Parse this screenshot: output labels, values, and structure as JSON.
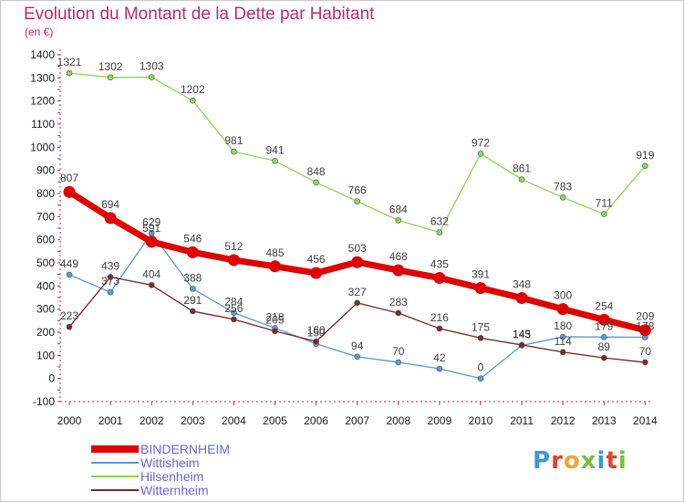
{
  "title": "Evolution du Montant de la Dette par Habitant",
  "unit_label": "(en €)",
  "logo": {
    "text": "Proxiti",
    "colors": [
      "#3b9ad9",
      "#e0452b",
      "#f2a33a",
      "#7ac143",
      "#3b9ad9",
      "#e0452b",
      "#7ac143"
    ]
  },
  "chart_data": {
    "type": "line",
    "title": "Evolution du Montant de la Dette par Habitant",
    "ylabel": "(en €)",
    "xlabel": "",
    "x": [
      "2000",
      "2001",
      "2002",
      "2003",
      "2004",
      "2005",
      "2006",
      "2007",
      "2008",
      "2009",
      "2010",
      "2011",
      "2012",
      "2013",
      "2014"
    ],
    "ylim": [
      -100,
      1400
    ],
    "yticks": [
      -100,
      0,
      100,
      200,
      300,
      400,
      500,
      600,
      700,
      800,
      900,
      1000,
      1100,
      1200,
      1300,
      1400
    ],
    "grid": false,
    "legend_position": "bottom-left",
    "series": [
      {
        "name": "BINDERNHEIM",
        "color": "#e00000",
        "values": [
          807,
          694,
          591,
          546,
          512,
          485,
          456,
          503,
          468,
          435,
          391,
          348,
          300,
          254,
          209
        ]
      },
      {
        "name": "Wittisheim",
        "color": "#5a9bd0",
        "values": [
          449,
          373,
          629,
          388,
          284,
          218,
          150,
          94,
          70,
          42,
          0,
          143,
          180,
          179,
          178
        ]
      },
      {
        "name": "Hilsenheim",
        "color": "#8ed65a",
        "values": [
          1321,
          1302,
          1303,
          1202,
          981,
          941,
          848,
          766,
          684,
          632,
          972,
          861,
          783,
          711,
          919
        ]
      },
      {
        "name": "Witternheim",
        "color": "#7a2a2a",
        "values": [
          223,
          439,
          404,
          291,
          256,
          205,
          160,
          327,
          283,
          216,
          175,
          145,
          114,
          89,
          70
        ]
      }
    ]
  }
}
